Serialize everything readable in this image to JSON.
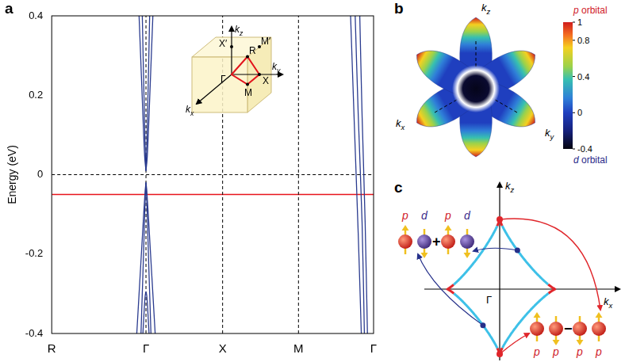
{
  "panel_labels": [
    "a",
    "b",
    "c"
  ],
  "chart_data": {
    "type": "line",
    "y_label": "Energy (eV)",
    "color": "#2a3b8f",
    "grid": false,
    "xlim": [
      0,
      4.2
    ],
    "xticks": [
      {
        "value": 0,
        "label": "R"
      },
      {
        "value": 1.23,
        "label": "Γ"
      },
      {
        "value": 2.23,
        "label": "X"
      },
      {
        "value": 3.22,
        "label": "M"
      },
      {
        "value": 4.2,
        "label": "Γ"
      }
    ],
    "ylim": [
      -0.4,
      0.4
    ],
    "yticks": [
      -0.4,
      -0.2,
      0,
      0.2,
      0.4
    ],
    "series": [
      {
        "x": [
          1.23,
          1.215,
          1.2,
          1.18,
          1.16,
          1.14
        ],
        "values": [
          0.01,
          0.04,
          0.1,
          0.2,
          0.3,
          0.4
        ]
      },
      {
        "x": [
          1.23,
          1.222,
          1.212,
          1.197,
          1.182
        ],
        "values": [
          0.01,
          0.05,
          0.13,
          0.26,
          0.4
        ]
      },
      {
        "x": [
          1.23,
          1.245,
          1.26,
          1.28,
          1.3,
          1.32
        ],
        "values": [
          0.01,
          0.04,
          0.1,
          0.2,
          0.3,
          0.4
        ]
      },
      {
        "x": [
          1.23,
          1.238,
          1.248,
          1.263,
          1.278
        ],
        "values": [
          0.01,
          0.05,
          0.13,
          0.26,
          0.4
        ]
      },
      {
        "x": [
          1.23,
          1.22,
          1.2,
          1.17,
          1.14,
          1.11
        ],
        "values": [
          -0.02,
          -0.04,
          -0.1,
          -0.2,
          -0.3,
          -0.4
        ]
      },
      {
        "x": [
          1.23,
          1.222,
          1.21,
          1.195,
          1.18,
          1.165
        ],
        "values": [
          -0.02,
          -0.05,
          -0.12,
          -0.22,
          -0.31,
          -0.4
        ]
      },
      {
        "x": [
          1.23,
          1.24,
          1.26,
          1.29,
          1.32,
          1.35
        ],
        "values": [
          -0.02,
          -0.04,
          -0.1,
          -0.2,
          -0.3,
          -0.4
        ]
      },
      {
        "x": [
          1.23,
          1.238,
          1.25,
          1.265,
          1.28,
          1.295
        ],
        "values": [
          -0.02,
          -0.05,
          -0.12,
          -0.22,
          -0.31,
          -0.4
        ]
      },
      {
        "x": [
          1.19,
          1.21,
          1.22,
          1.23,
          1.24,
          1.25,
          1.27
        ],
        "values": [
          -0.4,
          -0.33,
          -0.305,
          -0.295,
          -0.305,
          -0.33,
          -0.4
        ]
      },
      {
        "x": [
          3.9,
          3.95,
          4.0,
          4.04
        ],
        "values": [
          0.4,
          0.12,
          -0.15,
          -0.4
        ]
      },
      {
        "x": [
          3.96,
          4.0,
          4.05,
          4.08
        ],
        "values": [
          0.4,
          0.15,
          -0.12,
          -0.4
        ]
      },
      {
        "x": [
          4.02,
          4.05,
          4.09,
          4.12
        ],
        "values": [
          0.4,
          0.15,
          -0.12,
          -0.4
        ]
      }
    ],
    "reference_lines": [
      {
        "axis": "x",
        "value": 1.23,
        "line_style": "dashed",
        "color": "#000000"
      },
      {
        "axis": "x",
        "value": 2.23,
        "line_style": "dashed",
        "color": "#000000"
      },
      {
        "axis": "x",
        "value": 3.22,
        "line_style": "dashed",
        "color": "#000000"
      },
      {
        "axis": "y",
        "value": 0,
        "line_style": "dashed",
        "color": "#000000"
      },
      {
        "axis": "y",
        "value": -0.05,
        "line_style": "solid",
        "color": "#e8141c"
      }
    ]
  },
  "inset": {
    "axes": {
      "x": "kx",
      "y": "ky",
      "z": "kz"
    },
    "points": {
      "gamma": "Γ",
      "r": "R",
      "x": "X",
      "m": "M",
      "x_prime": "X′",
      "m_prime": "M′"
    }
  },
  "fermi_surface": {
    "axes": {
      "x": "kx",
      "y": "ky",
      "z": "kz"
    },
    "colorbar": {
      "range": [
        -0.4,
        1
      ],
      "ticks": [
        -0.4,
        0,
        0.4,
        0.8,
        1
      ],
      "top_label": "p orbital",
      "bottom_label": "d orbital"
    }
  },
  "orbital_diagram": {
    "axes": {
      "vertical": "kz",
      "horizontal": "kx"
    },
    "origin": "Γ",
    "top_group": {
      "terms": [
        [
          "p",
          "d"
        ],
        [
          "p",
          "d"
        ]
      ],
      "operator": "+"
    },
    "bottom_group": {
      "terms": [
        [
          "p",
          "p"
        ],
        [
          "p",
          "p"
        ]
      ],
      "operator": "−"
    }
  }
}
